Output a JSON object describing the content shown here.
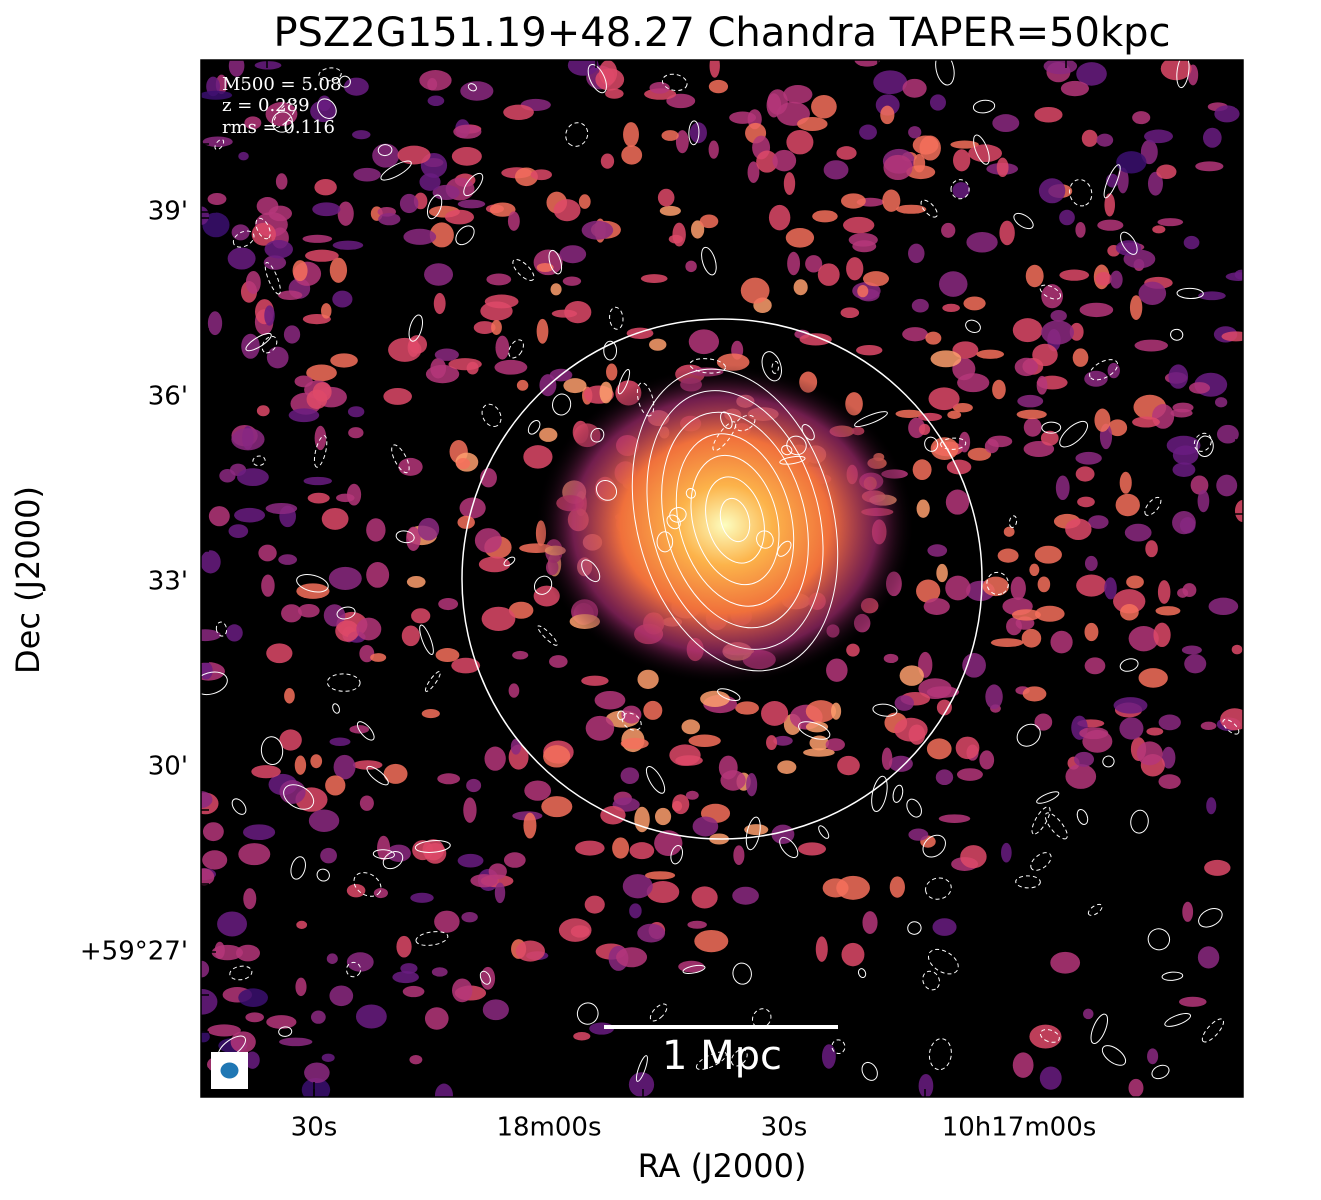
{
  "title": "PSZ2G151.19+48.27 Chandra TAPER=50kpc",
  "x_axis": {
    "label": "RA (J2000)",
    "tick_labels": [
      "30s",
      "18m00s",
      "30s",
      "10h17m00s"
    ]
  },
  "y_axis": {
    "label": "Dec (J2000)",
    "tick_labels": [
      "39'",
      "36'",
      "33'",
      "30'",
      "+59°27'"
    ]
  },
  "annotations": [
    "M500 = 5.08",
    "z = 0.289",
    "rms = 0.116"
  ],
  "scale_bar": "1 Mpc"
}
